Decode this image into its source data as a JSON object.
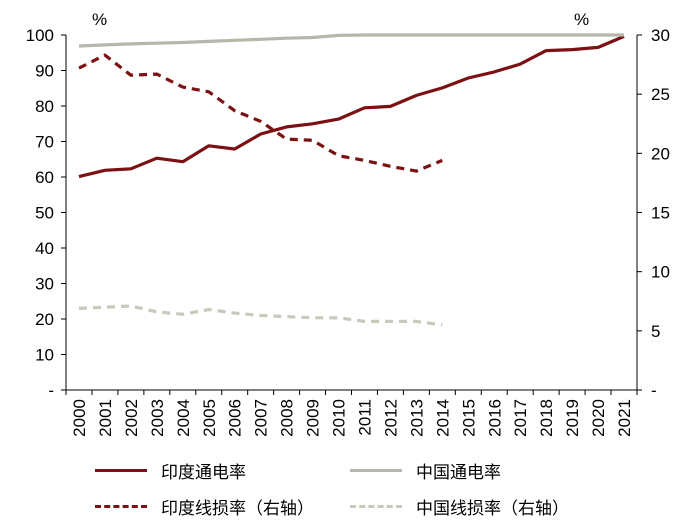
{
  "chart_data": {
    "type": "line",
    "categories": [
      "2000",
      "2001",
      "2002",
      "2003",
      "2004",
      "2005",
      "2006",
      "2007",
      "2008",
      "2009",
      "2010",
      "2011",
      "2012",
      "2013",
      "2014",
      "2015",
      "2016",
      "2017",
      "2018",
      "2019",
      "2020",
      "2021"
    ],
    "left_axis": {
      "unit": "%",
      "ylim": [
        0,
        100
      ],
      "ticks": [
        0,
        10,
        20,
        30,
        40,
        50,
        60,
        70,
        80,
        90,
        100
      ],
      "tick_labels": [
        "-",
        "10",
        "20",
        "30",
        "40",
        "50",
        "60",
        "70",
        "80",
        "90",
        "100"
      ]
    },
    "right_axis": {
      "unit": "%",
      "ylim": [
        0,
        30
      ],
      "ticks": [
        0,
        5,
        10,
        15,
        20,
        25,
        30
      ],
      "tick_labels": [
        "-",
        "5",
        "10",
        "15",
        "20",
        "25",
        "30"
      ]
    },
    "series": [
      {
        "name": "印度通电率",
        "axis": "left",
        "style": "solid",
        "color": "#7b1113",
        "values": [
          60.1,
          61.9,
          62.3,
          65.3,
          64.3,
          68.8,
          67.9,
          72.1,
          74.1,
          75.0,
          76.3,
          79.5,
          79.9,
          83.0,
          85.1,
          87.9,
          89.6,
          91.8,
          95.6,
          95.9,
          96.5,
          99.6
        ]
      },
      {
        "name": "中国通电率",
        "axis": "left",
        "style": "solid",
        "color": "#b5b8a9",
        "values": [
          96.9,
          97.2,
          97.5,
          97.7,
          97.9,
          98.2,
          98.5,
          98.8,
          99.1,
          99.3,
          99.9,
          100,
          100,
          100,
          100,
          100,
          100,
          100,
          100,
          100,
          100,
          100
        ]
      },
      {
        "name": "印度线损率（右轴）",
        "axis": "right",
        "style": "dashed",
        "color": "#7b1113",
        "values": [
          27.2,
          28.3,
          26.6,
          26.7,
          25.6,
          25.2,
          23.6,
          22.7,
          21.2,
          21.1,
          19.8,
          19.4,
          18.9,
          18.5,
          19.4,
          null,
          null,
          null,
          null,
          null,
          null,
          null
        ]
      },
      {
        "name": "中国线损率（右轴）",
        "axis": "right",
        "style": "dashed",
        "color": "#c9c9bb",
        "values": [
          6.9,
          7.0,
          7.1,
          6.6,
          6.4,
          6.8,
          6.5,
          6.3,
          6.2,
          6.1,
          6.1,
          5.8,
          5.8,
          5.8,
          5.5,
          null,
          null,
          null,
          null,
          null,
          null,
          null
        ]
      }
    ]
  }
}
